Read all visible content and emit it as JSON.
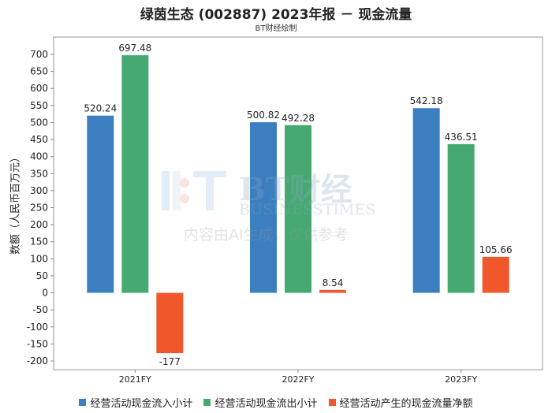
{
  "title": "绿茵生态 (002887) 2023年报 － 现金流量",
  "subtitle": "BT财经绘制",
  "watermark": {
    "brand": "BT财经",
    "brand_en": "BUSINESSTIMES",
    "note": "内容由AI生成，仅供参考"
  },
  "chart_data": {
    "type": "bar",
    "categories": [
      "2021FY",
      "2022FY",
      "2023FY"
    ],
    "ylabel": "数额（人民币百万元）",
    "ylim": [
      -200,
      700
    ],
    "yticks": [
      -200,
      -150,
      -100,
      -50,
      0,
      50,
      100,
      150,
      200,
      250,
      300,
      350,
      400,
      450,
      500,
      550,
      600,
      650,
      700
    ],
    "grid": false,
    "legend_position": "bottom",
    "series": [
      {
        "name": "经营活动现金流入小计",
        "color": "#3b7fc0",
        "values": [
          520.24,
          500.82,
          542.18
        ],
        "labels": [
          "520.24",
          "500.82",
          "542.18"
        ]
      },
      {
        "name": "经营活动现金流出小计",
        "color": "#46a972",
        "values": [
          697.48,
          492.28,
          436.51
        ],
        "labels": [
          "697.48",
          "492.28",
          "436.51"
        ]
      },
      {
        "name": "经营活动产生的现金流量净额",
        "color": "#f0572a",
        "values": [
          -177,
          8.54,
          105.66
        ],
        "labels": [
          "-177",
          "8.54",
          "105.66"
        ]
      }
    ]
  }
}
